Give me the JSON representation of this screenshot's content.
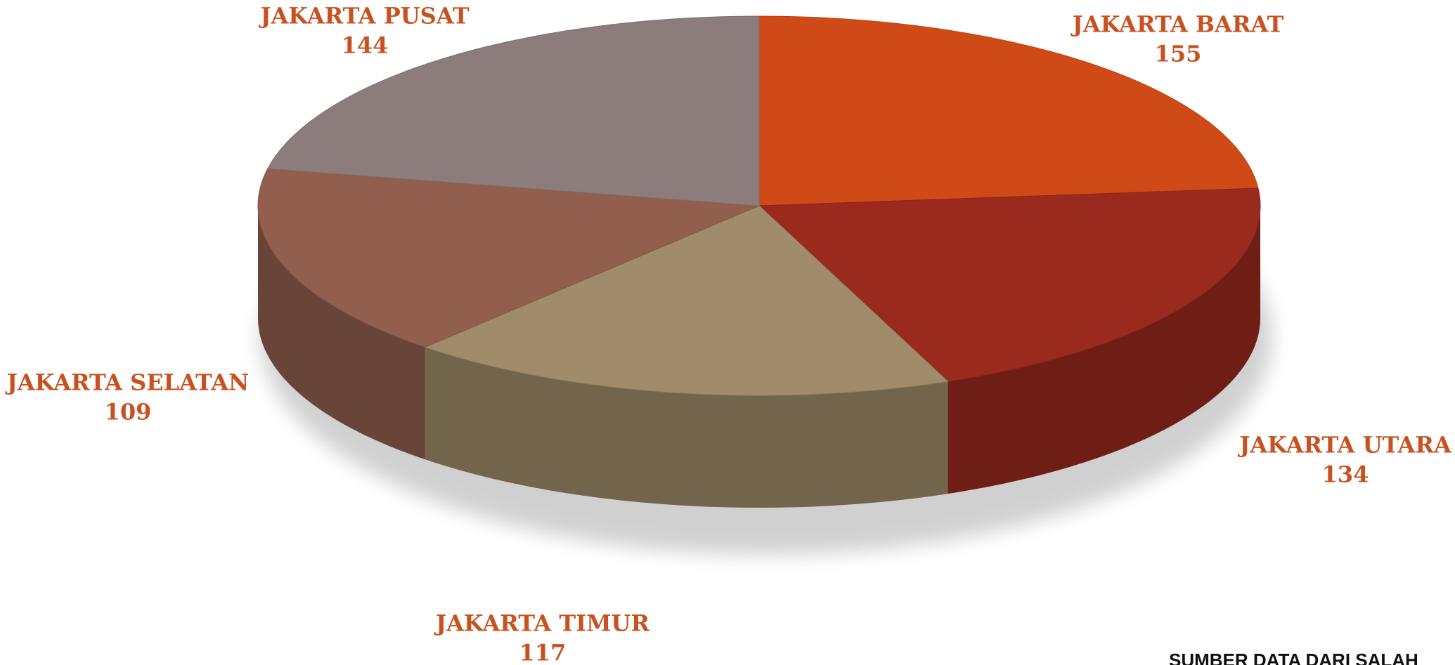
{
  "chart_data": {
    "type": "pie",
    "categories": [
      "JAKARTA BARAT",
      "JAKARTA UTARA",
      "JAKARTA TIMUR",
      "JAKARTA SELATAN",
      "JAKARTA PUSAT"
    ],
    "values": [
      155,
      134,
      117,
      109,
      144
    ],
    "colors": [
      "#d04a17",
      "#9a2a1e",
      "#a08c6a",
      "#925f4e",
      "#8c7d7c"
    ],
    "source": "SUMBER DATA DARI SALAH"
  }
}
